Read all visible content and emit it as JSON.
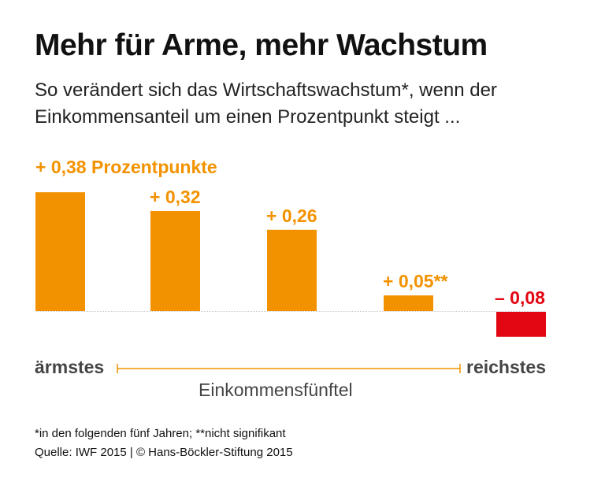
{
  "title": "Mehr für Arme, mehr Wachstum",
  "subtitle": "So verändert sich das Wirtschaftswachstum*, wenn der Einkommensanteil um einen Prozentpunkt steigt ...",
  "chart_data": {
    "type": "bar",
    "categories": [
      "1",
      "2",
      "3",
      "4",
      "5"
    ],
    "values": [
      0.38,
      0.32,
      0.26,
      0.05,
      -0.08
    ],
    "data_labels": [
      "+ 0,38 Prozentpunkte",
      "+ 0,32",
      "+ 0,26",
      "+ 0,05**",
      "– 0,08"
    ],
    "xlabel": "Einkommensfünftel",
    "x_left_label": "ärmstes",
    "x_right_label": "reichstes",
    "colors": {
      "positive": "#f39200",
      "negative": "#e30613",
      "baseline": "#cccccc"
    }
  },
  "footnote": "*in den folgenden fünf Jahren; **nicht signifikant",
  "source": "Quelle: IWF 2015 | © Hans-Böckler-Stiftung 2015"
}
